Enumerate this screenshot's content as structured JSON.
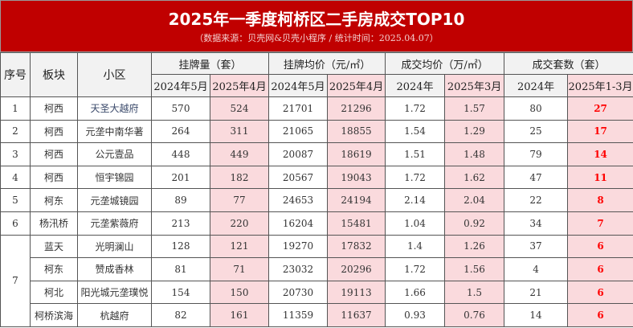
{
  "header": {
    "title": "2025年一季度柯桥区二手房成交TOP10",
    "subtitle": "（数据来源：贝壳网&贝壳小程序 / 统计时间：2025.04.07）"
  },
  "columns": {
    "rank": "序号",
    "district": "板块",
    "community": "小区",
    "listings": "挂牌量（套）",
    "list_price": "挂牌均价（元/㎡）",
    "deal_price": "成交均价（万/㎡）",
    "deals": "成交套数（套）",
    "sub": [
      "2024年5月",
      "2025年4月",
      "2024年5月",
      "2025年4月",
      "2024年",
      "2025年3月",
      "2024年",
      "2025年1-3月"
    ]
  },
  "colors": {
    "banner": "#c00000",
    "highlight": "#fadadd",
    "accent": "#ff0000"
  },
  "rows": [
    {
      "rank": "1",
      "district": "柯西",
      "community": "天圣大越府",
      "v": [
        "570",
        "524",
        "21701",
        "21296",
        "1.72",
        "1.57",
        "80",
        "27"
      ]
    },
    {
      "rank": "2",
      "district": "柯西",
      "community": "元垄中南华著",
      "v": [
        "264",
        "311",
        "21065",
        "18855",
        "1.54",
        "1.29",
        "25",
        "17"
      ]
    },
    {
      "rank": "3",
      "district": "柯西",
      "community": "公元壹品",
      "v": [
        "448",
        "449",
        "20087",
        "18619",
        "1.51",
        "1.48",
        "79",
        "14"
      ]
    },
    {
      "rank": "4",
      "district": "柯西",
      "community": "恒宇锦园",
      "v": [
        "201",
        "182",
        "20567",
        "19043",
        "1.72",
        "1.62",
        "47",
        "11"
      ]
    },
    {
      "rank": "5",
      "district": "柯东",
      "community": "元垄城镜园",
      "v": [
        "89",
        "77",
        "24653",
        "24194",
        "2.14",
        "2.04",
        "22",
        "8"
      ]
    },
    {
      "rank": "6",
      "district": "杨汛桥",
      "community": "元垄紫薇府",
      "v": [
        "213",
        "220",
        "16204",
        "15481",
        "1.04",
        "0.92",
        "34",
        "7"
      ]
    },
    {
      "rank": "7",
      "district": "蓝天",
      "community": "光明澜山",
      "v": [
        "128",
        "121",
        "19270",
        "17832",
        "1.4",
        "1.26",
        "37",
        "6"
      ]
    },
    {
      "rank": "",
      "district": "柯东",
      "community": "赞成香林",
      "v": [
        "81",
        "71",
        "23032",
        "20296",
        "1.72",
        "1.56",
        "4",
        "6"
      ]
    },
    {
      "rank": "",
      "district": "柯北",
      "community": "阳光城元垄璞悦",
      "v": [
        "154",
        "150",
        "20730",
        "19113",
        "1.66",
        "1.5",
        "21",
        "6"
      ]
    },
    {
      "rank": "",
      "district": "柯桥滨海",
      "community": "杭越府",
      "v": [
        "82",
        "161",
        "11359",
        "11637",
        "0.93",
        "0.76",
        "14",
        "6"
      ]
    }
  ]
}
